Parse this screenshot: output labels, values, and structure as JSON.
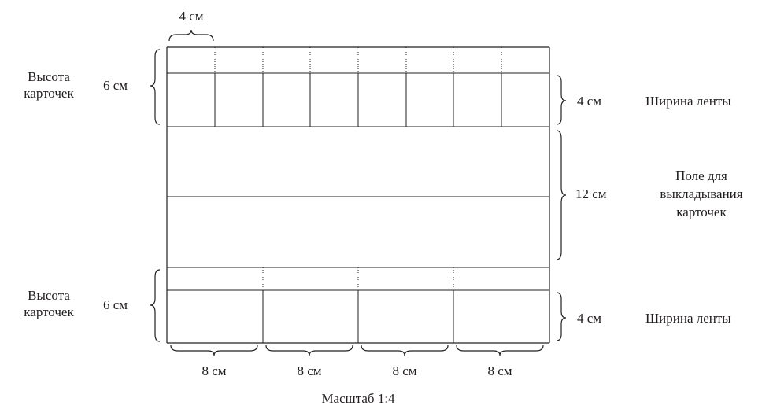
{
  "top_width_label": "4 см",
  "top_section": {
    "height_label_line1": "Высота",
    "height_label_line2": "карточек",
    "height_value": "6 см",
    "tape_value": "4 см",
    "tape_label": "Ширина ленты"
  },
  "middle_section": {
    "value": "12 см",
    "label_line1": "Поле для",
    "label_line2": "выкладывания",
    "label_line3": "карточек"
  },
  "bottom_section": {
    "height_label_line1": "Высота",
    "height_label_line2": "карточек",
    "height_value": "6 см",
    "tape_value": "4 см",
    "tape_label": "Ширина ленты"
  },
  "bottom_width_labels": [
    "8 см",
    "8 см",
    "8 см",
    "8 см"
  ],
  "scale_label": "Масштаб 1:4"
}
